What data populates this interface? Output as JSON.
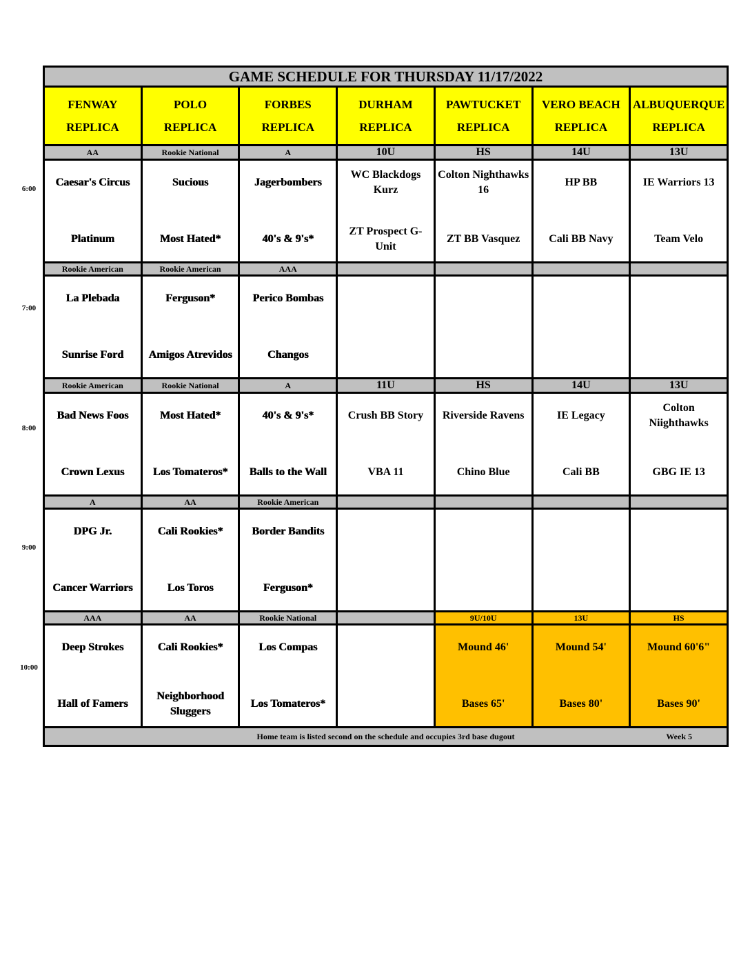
{
  "title": "GAME SCHEDULE FOR THURSDAY 11/17/2022",
  "fields": [
    {
      "name": "FENWAY",
      "sub": "REPLICA"
    },
    {
      "name": "POLO",
      "sub": "REPLICA"
    },
    {
      "name": "FORBES",
      "sub": "REPLICA"
    },
    {
      "name": "DURHAM",
      "sub": "REPLICA"
    },
    {
      "name": "PAWTUCKET",
      "sub": "REPLICA"
    },
    {
      "name": "VERO BEACH",
      "sub": "REPLICA"
    },
    {
      "name": "ALBUQUERQUE",
      "sub": "REPLICA"
    }
  ],
  "slots": [
    {
      "time": "6:00",
      "divisions": [
        "AA",
        "Rookie National",
        "A",
        "10U",
        "HS",
        "14U",
        "13U"
      ],
      "games": [
        {
          "top": "Caesar's Circus",
          "bottom": "Platinum"
        },
        {
          "top": "Sucious",
          "bottom": "Most Hated*"
        },
        {
          "top": "Jagerbombers",
          "bottom": "40's & 9's*"
        },
        {
          "top": "WC Blackdogs Kurz",
          "bottom": "ZT Prospect G-Unit"
        },
        {
          "top": "Colton Nighthawks 16",
          "bottom": "ZT BB Vasquez"
        },
        {
          "top": "HP BB",
          "bottom": "Cali BB Navy"
        },
        {
          "top": "IE Warriors 13",
          "bottom": "Team Velo"
        }
      ]
    },
    {
      "time": "7:00",
      "divisions": [
        "Rookie American",
        "Rookie American",
        "AAA",
        "",
        "",
        "",
        ""
      ],
      "games": [
        {
          "top": "La Plebada",
          "bottom": "Sunrise Ford"
        },
        {
          "top": "Ferguson*",
          "bottom": "Amigos Atrevidos"
        },
        {
          "top": "Perico Bombas",
          "bottom": "Changos"
        },
        {
          "top": "",
          "bottom": ""
        },
        {
          "top": "",
          "bottom": ""
        },
        {
          "top": "",
          "bottom": ""
        },
        {
          "top": "",
          "bottom": ""
        }
      ]
    },
    {
      "time": "8:00",
      "divisions": [
        "Rookie American",
        "Rookie National",
        "A",
        "11U",
        "HS",
        "14U",
        "13U"
      ],
      "games": [
        {
          "top": "Bad News Foos",
          "bottom": "Crown Lexus"
        },
        {
          "top": "Most Hated*",
          "bottom": "Los Tomateros*"
        },
        {
          "top": "40's & 9's*",
          "bottom": "Balls to the Wall"
        },
        {
          "top": "Crush BB Story",
          "bottom": "VBA 11"
        },
        {
          "top": "Riverside Ravens",
          "bottom": "Chino Blue"
        },
        {
          "top": "IE Legacy",
          "bottom": "Cali BB"
        },
        {
          "top": "Colton Niighthawks",
          "bottom": "GBG IE 13"
        }
      ]
    },
    {
      "time": "9:00",
      "divisions": [
        "A",
        "AA",
        "Rookie American",
        "",
        "",
        "",
        ""
      ],
      "games": [
        {
          "top": "DPG Jr.",
          "bottom": "Cancer Warriors"
        },
        {
          "top": "Cali Rookies*",
          "bottom": "Los Toros"
        },
        {
          "top": "Border Bandits",
          "bottom": "Ferguson*"
        },
        {
          "top": "",
          "bottom": ""
        },
        {
          "top": "",
          "bottom": ""
        },
        {
          "top": "",
          "bottom": ""
        },
        {
          "top": "",
          "bottom": ""
        }
      ]
    },
    {
      "time": "10:00",
      "divisions": [
        "AAA",
        "AA",
        "Rookie National",
        "",
        "9U/10U",
        "13U",
        "HS"
      ],
      "games": [
        {
          "top": "Deep Strokes",
          "bottom": "Hall of Famers"
        },
        {
          "top": "Cali Rookies*",
          "bottom": "Neighborhood Sluggers"
        },
        {
          "top": "Los Compas",
          "bottom": "Los Tomateros*"
        },
        {
          "top": "",
          "bottom": ""
        },
        {
          "top": "Mound 46'",
          "bottom": "Bases 65'"
        },
        {
          "top": "Mound 54'",
          "bottom": "Bases 80'"
        },
        {
          "top": "Mound 60'6\"",
          "bottom": "Bases 90'"
        }
      ]
    }
  ],
  "footer": {
    "note": "Home team is listed second on the schedule and occupies 3rd base dugout",
    "week": "Week 5"
  },
  "colors": {
    "header": "#ffff00",
    "division_bar": "#c0c0c0",
    "info_highlight": "#ffc000"
  }
}
